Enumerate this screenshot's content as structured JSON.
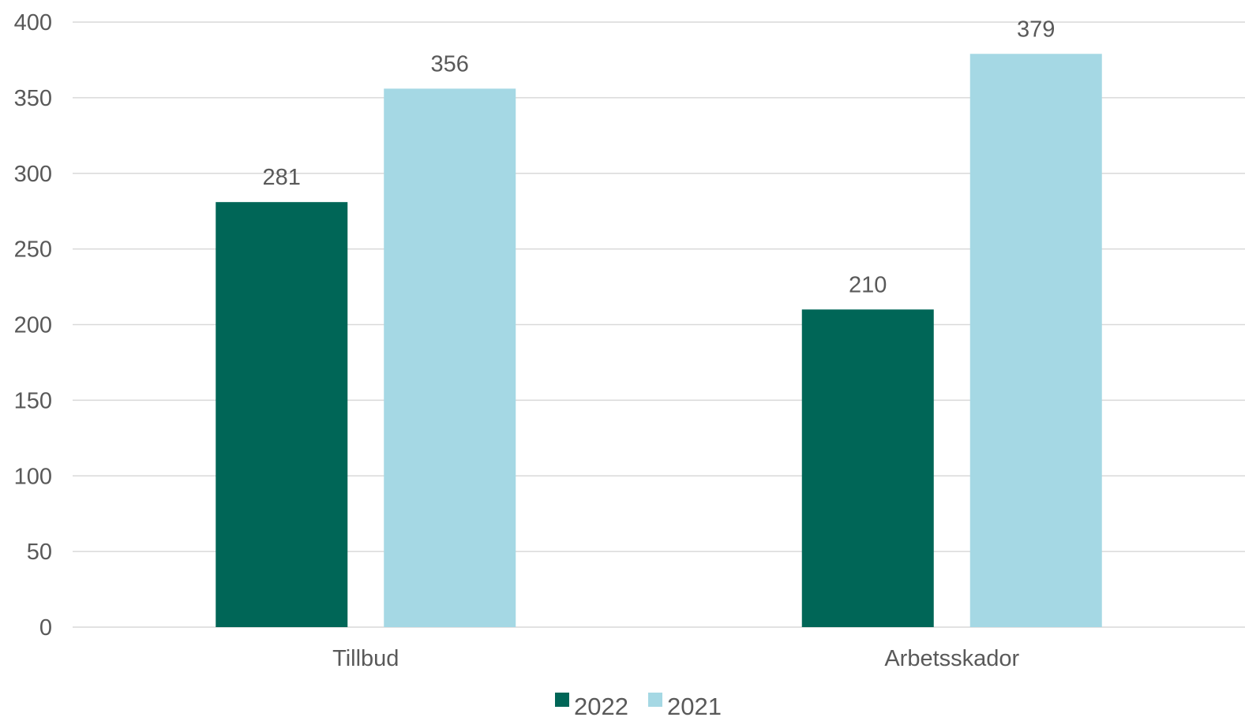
{
  "chart_data": {
    "type": "bar",
    "title": "",
    "xlabel": "",
    "ylabel": "",
    "categories": [
      "Tillbud",
      "Arbetsskador"
    ],
    "series": [
      {
        "name": "2022",
        "values": [
          281,
          210
        ],
        "color": "#006657"
      },
      {
        "name": "2021",
        "values": [
          356,
          379
        ],
        "color": "#a5d8e4"
      }
    ],
    "ylim": [
      0,
      400
    ],
    "yticks": [
      "0",
      "50",
      "100",
      "150",
      "200",
      "250",
      "300",
      "350",
      "400"
    ],
    "data_labels": true,
    "grid": true,
    "legend": {
      "position": "bottom"
    }
  }
}
